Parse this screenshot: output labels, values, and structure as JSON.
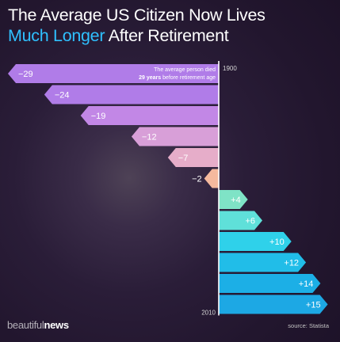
{
  "title_line1": "The Average US Citizen Now Lives",
  "title_highlight": "Much Longer",
  "title_rest": " After Retirement",
  "brand_part1": "beautiful",
  "brand_part2": "news",
  "source_text": "source: Statista",
  "colors": {
    "title_highlight": "#2fc0ff",
    "background": "#22162e"
  },
  "chart_data": {
    "type": "bar",
    "orientation": "horizontal-diverging",
    "title": "The Average US Citizen Now Lives Much Longer After Retirement",
    "axis_labels": {
      "start": "1900",
      "end": "2010"
    },
    "annotation": {
      "line1": "The average person died",
      "line2_bold": "29 years",
      "line2_rest": " before retirement age"
    },
    "categories": [
      "1900",
      "",
      "",
      "",
      "",
      "",
      "",
      "",
      "",
      "",
      "",
      "2010"
    ],
    "values": [
      -29,
      -24,
      -19,
      -12,
      -7,
      -2,
      4,
      6,
      10,
      12,
      14,
      15
    ],
    "labels": [
      "−29",
      "−24",
      "−19",
      "−12",
      "−7",
      "−2",
      "+4",
      "+6",
      "+10",
      "+12",
      "+14",
      "+15"
    ],
    "colors": [
      "#b07ce8",
      "#b07ce8",
      "#c287e6",
      "#d89fd8",
      "#e6adc9",
      "#f5b99e",
      "#7fe3c6",
      "#5fe0d9",
      "#2fd1ea",
      "#21bde8",
      "#1cafe6",
      "#1da8e4"
    ],
    "xlim": [
      -29,
      15
    ]
  }
}
